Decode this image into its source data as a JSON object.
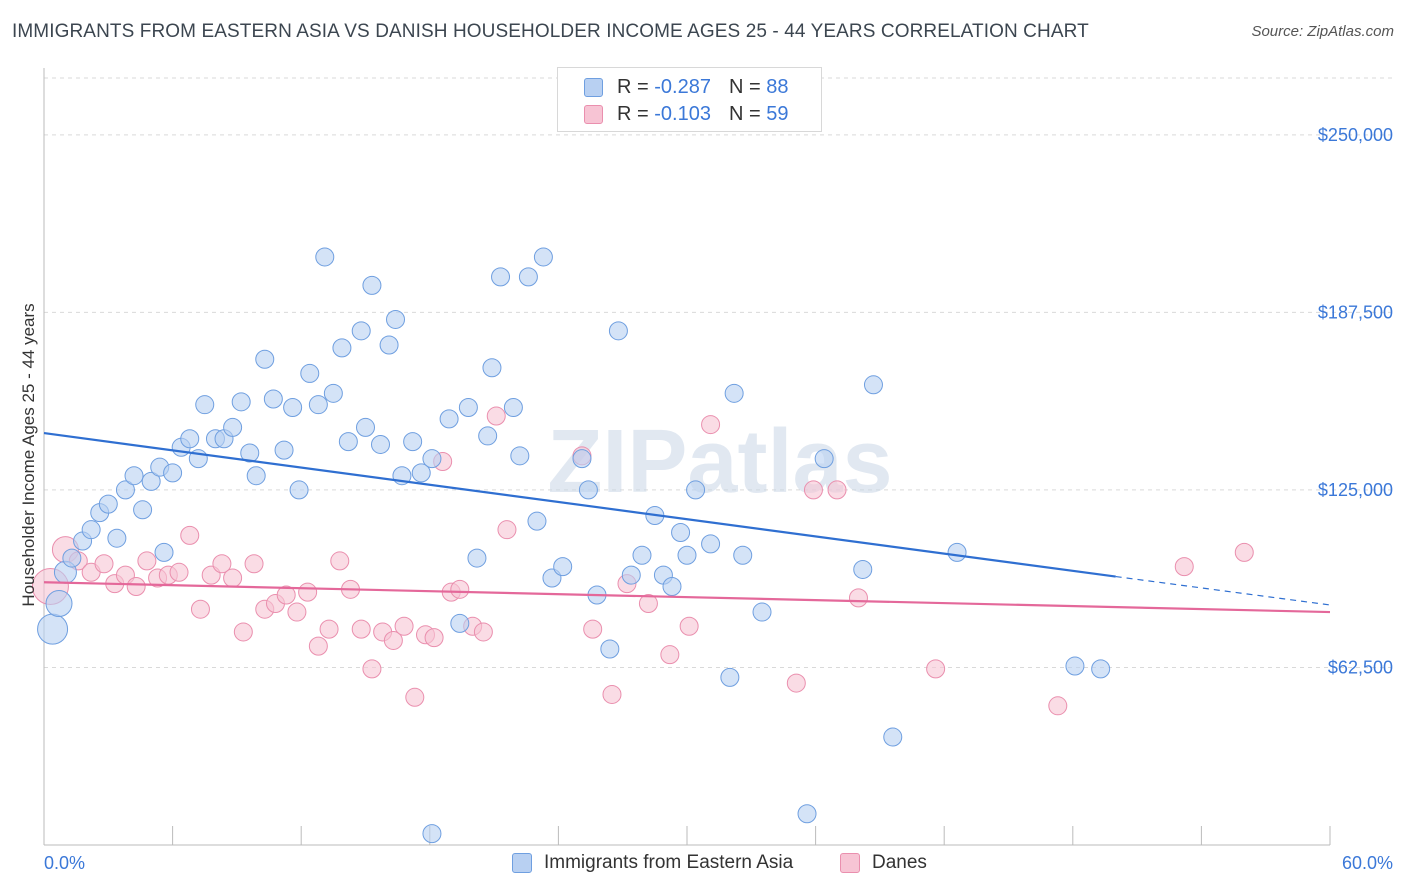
{
  "header": {
    "title": "IMMIGRANTS FROM EASTERN ASIA VS DANISH HOUSEHOLDER INCOME AGES 25 - 44 YEARS CORRELATION CHART",
    "source": "Source: ZipAtlas.com"
  },
  "legend": {
    "rows": [
      {
        "r_label": "R =",
        "r_value": "-0.287",
        "n_label": "N =",
        "n_value": "88"
      },
      {
        "r_label": "R =",
        "r_value": "-0.103",
        "n_label": "N =",
        "n_value": "59"
      }
    ]
  },
  "colors": {
    "blue_fill": "#b8d0f2",
    "blue_stroke": "#6f9fe0",
    "blue_line": "#2f6fd1",
    "pink_fill": "#f7c4d4",
    "pink_stroke": "#ea8fae",
    "pink_line": "#e4689a",
    "tick_text": "#3b78d8",
    "grid": "#d9d9d9"
  },
  "chart_data": {
    "type": "scatter",
    "title": "IMMIGRANTS FROM EASTERN ASIA VS DANISH HOUSEHOLDER INCOME AGES 25 - 44 YEARS CORRELATION CHART",
    "ylabel": "Householder Income Ages 25 - 44 years",
    "xlim": [
      0,
      60
    ],
    "ylim": [
      0,
      270000
    ],
    "x_tick_labels": [
      "0.0%",
      "60.0%"
    ],
    "y_ticks": [
      62500,
      125000,
      187500,
      250000
    ],
    "y_tick_labels": [
      "$62,500",
      "$125,000",
      "$187,500",
      "$250,000"
    ],
    "watermark": "ZIPatlas",
    "series": [
      {
        "name": "Immigrants from Eastern Asia",
        "r": -0.287,
        "n": 88,
        "trend": {
          "x0": 0,
          "y0": 145000,
          "x1": 50,
          "y1": 94500,
          "dash_to_x": 60,
          "dash_to_y": 84500
        },
        "points": [
          [
            0.4,
            76000,
            30
          ],
          [
            0.7,
            85000,
            26
          ],
          [
            1.0,
            96000,
            22
          ],
          [
            1.3,
            101000,
            18
          ],
          [
            1.8,
            107000,
            18
          ],
          [
            2.2,
            111000,
            18
          ],
          [
            2.6,
            117000,
            18
          ],
          [
            3.0,
            120000,
            18
          ],
          [
            3.4,
            108000,
            18
          ],
          [
            3.8,
            125000,
            18
          ],
          [
            4.2,
            130000,
            18
          ],
          [
            4.6,
            118000,
            18
          ],
          [
            5.0,
            128000,
            18
          ],
          [
            5.4,
            133000,
            18
          ],
          [
            5.6,
            103000,
            18
          ],
          [
            6.0,
            131000,
            18
          ],
          [
            6.4,
            140000,
            18
          ],
          [
            6.8,
            143000,
            18
          ],
          [
            7.2,
            136000,
            18
          ],
          [
            7.5,
            155000,
            18
          ],
          [
            8.0,
            143000,
            18
          ],
          [
            8.4,
            143000,
            18
          ],
          [
            8.8,
            147000,
            18
          ],
          [
            9.2,
            156000,
            18
          ],
          [
            9.6,
            138000,
            18
          ],
          [
            9.9,
            130000,
            18
          ],
          [
            10.3,
            171000,
            18
          ],
          [
            10.7,
            157000,
            18
          ],
          [
            11.2,
            139000,
            18
          ],
          [
            11.6,
            154000,
            18
          ],
          [
            11.9,
            125000,
            18
          ],
          [
            12.4,
            166000,
            18
          ],
          [
            12.8,
            155000,
            18
          ],
          [
            13.1,
            207000,
            18
          ],
          [
            13.5,
            159000,
            18
          ],
          [
            13.9,
            175000,
            18
          ],
          [
            14.2,
            142000,
            18
          ],
          [
            14.8,
            181000,
            18
          ],
          [
            15.0,
            147000,
            18
          ],
          [
            15.3,
            197000,
            18
          ],
          [
            15.7,
            141000,
            18
          ],
          [
            16.1,
            176000,
            18
          ],
          [
            16.4,
            185000,
            18
          ],
          [
            16.7,
            130000,
            18
          ],
          [
            17.2,
            142000,
            18
          ],
          [
            17.6,
            131000,
            18
          ],
          [
            18.1,
            136000,
            18
          ],
          [
            18.9,
            150000,
            18
          ],
          [
            19.4,
            78000,
            18
          ],
          [
            19.8,
            154000,
            18
          ],
          [
            20.2,
            101000,
            18
          ],
          [
            20.7,
            144000,
            18
          ],
          [
            20.9,
            168000,
            18
          ],
          [
            21.3,
            200000,
            18
          ],
          [
            21.9,
            154000,
            18
          ],
          [
            22.2,
            137000,
            18
          ],
          [
            22.6,
            200000,
            18
          ],
          [
            23.0,
            114000,
            18
          ],
          [
            23.3,
            207000,
            18
          ],
          [
            23.7,
            94000,
            18
          ],
          [
            24.2,
            98000,
            18
          ],
          [
            25.1,
            136000,
            18
          ],
          [
            25.4,
            125000,
            18
          ],
          [
            25.8,
            88000,
            18
          ],
          [
            26.4,
            69000,
            18
          ],
          [
            26.8,
            181000,
            18
          ],
          [
            27.4,
            95000,
            18
          ],
          [
            27.9,
            102000,
            18
          ],
          [
            28.5,
            116000,
            18
          ],
          [
            28.9,
            95000,
            18
          ],
          [
            29.3,
            91000,
            18
          ],
          [
            29.7,
            110000,
            18
          ],
          [
            30.0,
            102000,
            18
          ],
          [
            30.4,
            125000,
            18
          ],
          [
            31.1,
            106000,
            18
          ],
          [
            32.0,
            59000,
            18
          ],
          [
            32.2,
            159000,
            18
          ],
          [
            32.6,
            102000,
            18
          ],
          [
            33.5,
            82000,
            18
          ],
          [
            35.6,
            11000,
            18
          ],
          [
            36.4,
            136000,
            18
          ],
          [
            38.2,
            97000,
            18
          ],
          [
            38.7,
            162000,
            18
          ],
          [
            39.6,
            38000,
            18
          ],
          [
            42.6,
            103000,
            18
          ],
          [
            48.1,
            63000,
            18
          ],
          [
            49.3,
            62000,
            18
          ],
          [
            18.1,
            4000,
            18
          ]
        ]
      },
      {
        "name": "Danes",
        "r": -0.103,
        "n": 59,
        "trend": {
          "x0": 0,
          "y0": 92500,
          "x1": 60,
          "y1": 82000
        },
        "points": [
          [
            0.3,
            91000,
            36
          ],
          [
            1.0,
            104000,
            26
          ],
          [
            1.6,
            100000,
            18
          ],
          [
            2.2,
            96000,
            18
          ],
          [
            2.8,
            99000,
            18
          ],
          [
            3.3,
            92000,
            18
          ],
          [
            3.8,
            95000,
            18
          ],
          [
            4.3,
            91000,
            18
          ],
          [
            4.8,
            100000,
            18
          ],
          [
            5.3,
            94000,
            18
          ],
          [
            5.8,
            95000,
            18
          ],
          [
            6.3,
            96000,
            18
          ],
          [
            6.8,
            109000,
            18
          ],
          [
            7.3,
            83000,
            18
          ],
          [
            7.8,
            95000,
            18
          ],
          [
            8.3,
            99000,
            18
          ],
          [
            8.8,
            94000,
            18
          ],
          [
            9.3,
            75000,
            18
          ],
          [
            9.8,
            99000,
            18
          ],
          [
            10.3,
            83000,
            18
          ],
          [
            10.8,
            85000,
            18
          ],
          [
            11.3,
            88000,
            18
          ],
          [
            11.8,
            82000,
            18
          ],
          [
            12.3,
            89000,
            18
          ],
          [
            12.8,
            70000,
            18
          ],
          [
            13.3,
            76000,
            18
          ],
          [
            13.8,
            100000,
            18
          ],
          [
            14.3,
            90000,
            18
          ],
          [
            14.8,
            76000,
            18
          ],
          [
            15.3,
            62000,
            18
          ],
          [
            15.8,
            75000,
            18
          ],
          [
            16.3,
            72000,
            18
          ],
          [
            16.8,
            77000,
            18
          ],
          [
            17.3,
            52000,
            18
          ],
          [
            17.8,
            74000,
            18
          ],
          [
            18.2,
            73000,
            18
          ],
          [
            18.6,
            135000,
            18
          ],
          [
            19.0,
            89000,
            18
          ],
          [
            19.4,
            90000,
            18
          ],
          [
            20.0,
            77000,
            18
          ],
          [
            20.5,
            75000,
            18
          ],
          [
            21.1,
            151000,
            18
          ],
          [
            21.6,
            111000,
            18
          ],
          [
            25.1,
            137000,
            18
          ],
          [
            25.6,
            76000,
            18
          ],
          [
            26.5,
            53000,
            18
          ],
          [
            27.2,
            92000,
            18
          ],
          [
            28.2,
            85000,
            18
          ],
          [
            29.2,
            67000,
            18
          ],
          [
            30.1,
            77000,
            18
          ],
          [
            31.1,
            148000,
            18
          ],
          [
            35.1,
            57000,
            18
          ],
          [
            35.9,
            125000,
            18
          ],
          [
            37.0,
            125000,
            18
          ],
          [
            38.0,
            87000,
            18
          ],
          [
            41.6,
            62000,
            18
          ],
          [
            47.3,
            49000,
            18
          ],
          [
            53.2,
            98000,
            18
          ],
          [
            56.0,
            103000,
            18
          ]
        ]
      }
    ]
  }
}
